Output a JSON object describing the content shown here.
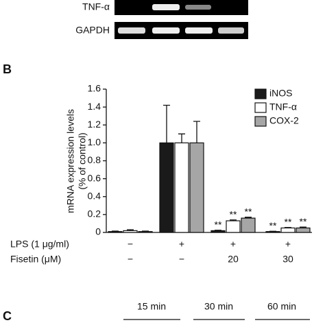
{
  "gel": {
    "rows": [
      "TNF-α",
      "GAPDH"
    ]
  },
  "panel_labels": [
    "B",
    "C"
  ],
  "panel_c": {
    "times": [
      "15 min",
      "30 min",
      "60 min"
    ]
  },
  "chart_data": {
    "type": "bar",
    "ylabel": [
      "mRNA expression levels",
      "(% of control)"
    ],
    "categories": [
      null,
      null,
      null,
      null
    ],
    "series": [
      {
        "name": "iNOS",
        "color": "#1a1a1a",
        "values": [
          0.01,
          1.0,
          0.02,
          0.01
        ],
        "errors": [
          0.005,
          0.42,
          0.005,
          0.003
        ],
        "significance": [
          null,
          null,
          "**",
          "**"
        ]
      },
      {
        "name": "TNF-α",
        "color": "#ffffff",
        "values": [
          0.02,
          1.0,
          0.13,
          0.05
        ],
        "errors": [
          0.01,
          0.1,
          0.01,
          0.005
        ],
        "significance": [
          null,
          null,
          "**",
          "**"
        ]
      },
      {
        "name": "COX-2",
        "color": "#a6a6a6",
        "values": [
          0.01,
          1.0,
          0.16,
          0.05
        ],
        "errors": [
          0.005,
          0.24,
          0.01,
          0.01
        ],
        "significance": [
          null,
          null,
          "**",
          "**"
        ]
      }
    ],
    "ylim": [
      0,
      1.6
    ],
    "yticks": [
      0,
      0.2,
      0.4,
      0.6,
      0.8,
      {
        "value": 1,
        "label": "1.0"
      },
      1.2,
      1.4,
      1.6
    ],
    "treatments": [
      {
        "label": "LPS (1 μg/ml)",
        "values": [
          "−",
          "+",
          "+",
          "+"
        ]
      },
      {
        "label": "Fisetin (μM)",
        "values": [
          "−",
          "−",
          "20",
          "30"
        ]
      }
    ]
  }
}
